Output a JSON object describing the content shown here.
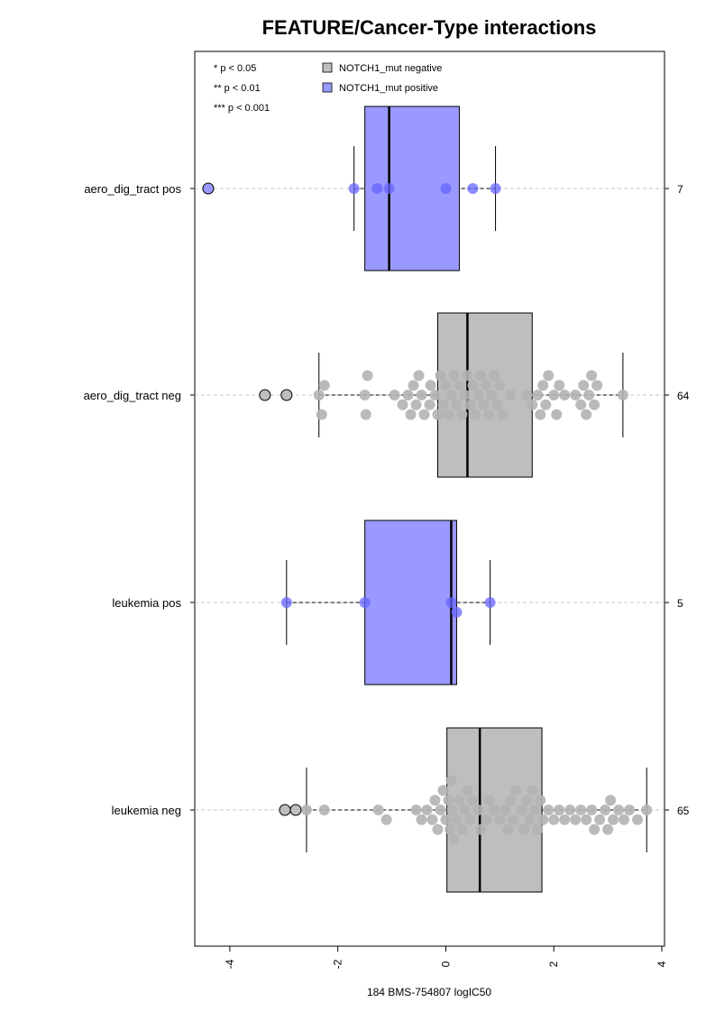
{
  "chart_data": {
    "type": "box",
    "orientation": "horizontal",
    "title": "FEATURE/Cancer-Type interactions",
    "xlabel": "184 BMS-754807 logIC50",
    "xlim": [
      -4.65,
      4.05
    ],
    "x_ticks": [
      -4,
      -2,
      0,
      2,
      4
    ],
    "x_tick_labels": [
      "-4",
      "-2",
      "0",
      "2",
      "4"
    ],
    "colors": {
      "negative": "#bebebe",
      "positive": "#9999ff",
      "neg_point": "#b3b3b3",
      "pos_point": "#6666ff",
      "outline": "#000000"
    },
    "legend_entries": [
      {
        "label": "NOTCH1_mut negative",
        "group": "negative"
      },
      {
        "label": "NOTCH1_mut positive",
        "group": "positive"
      }
    ],
    "significance_notes": [
      "* p < 0.05",
      "** p < 0.01",
      "*** p < 0.001"
    ],
    "groups": [
      {
        "label": "aero_dig_tract pos",
        "n": "7",
        "group": "positive",
        "box": {
          "q1": -1.5,
          "median": -1.05,
          "q3": 0.25,
          "whisker_low": -1.7,
          "whisker_high": 0.92
        },
        "outliers": [
          -4.4
        ],
        "points": [
          -1.7,
          -1.27,
          -1.05,
          0.0,
          0.5,
          0.92
        ]
      },
      {
        "label": "aero_dig_tract neg",
        "n": "64",
        "group": "negative",
        "box": {
          "q1": -0.15,
          "median": 0.4,
          "q3": 1.6,
          "whisker_low": -2.35,
          "whisker_high": 3.28
        },
        "outliers": [
          -3.35,
          -2.95
        ],
        "points": [
          -2.35,
          -2.3,
          -2.25,
          -1.5,
          -1.48,
          -1.45,
          -0.95,
          -0.8,
          -0.7,
          -0.65,
          -0.6,
          -0.55,
          -0.5,
          -0.45,
          -0.4,
          -0.3,
          -0.28,
          -0.2,
          -0.15,
          -0.1,
          -0.05,
          0.0,
          0.05,
          0.1,
          0.15,
          0.2,
          0.25,
          0.3,
          0.35,
          0.4,
          0.45,
          0.5,
          0.55,
          0.6,
          0.65,
          0.7,
          0.75,
          0.8,
          0.85,
          0.9,
          0.95,
          1.0,
          1.05,
          1.2,
          1.5,
          1.6,
          1.7,
          1.75,
          1.8,
          1.85,
          1.9,
          2.0,
          2.05,
          2.1,
          2.2,
          2.4,
          2.5,
          2.55,
          2.6,
          2.65,
          2.7,
          2.75,
          2.8,
          3.28
        ]
      },
      {
        "label": "leukemia pos",
        "n": "5",
        "group": "positive",
        "box": {
          "q1": -1.5,
          "median": 0.1,
          "q3": 0.2,
          "whisker_low": -2.95,
          "whisker_high": 0.82
        },
        "outliers": [],
        "points": [
          -2.95,
          -1.5,
          0.1,
          0.2,
          0.82
        ]
      },
      {
        "label": "leukemia neg",
        "n": "65",
        "group": "negative",
        "box": {
          "q1": 0.02,
          "median": 0.63,
          "q3": 1.78,
          "whisker_low": -2.58,
          "whisker_high": 3.72
        },
        "outliers": [
          -2.98,
          -2.78
        ],
        "points": [
          -2.58,
          -2.25,
          -1.25,
          -1.1,
          -0.55,
          -0.45,
          -0.35,
          -0.25,
          -0.2,
          -0.15,
          -0.1,
          -0.05,
          0.0,
          0.05,
          0.08,
          0.1,
          0.12,
          0.15,
          0.2,
          0.25,
          0.3,
          0.35,
          0.4,
          0.45,
          0.5,
          0.6,
          0.65,
          0.75,
          0.8,
          0.9,
          1.0,
          1.1,
          1.15,
          1.2,
          1.25,
          1.3,
          1.4,
          1.45,
          1.5,
          1.55,
          1.6,
          1.65,
          1.7,
          1.75,
          1.8,
          1.9,
          2.0,
          2.1,
          2.2,
          2.3,
          2.4,
          2.5,
          2.6,
          2.7,
          2.75,
          2.85,
          2.95,
          3.0,
          3.05,
          3.1,
          3.2,
          3.3,
          3.4,
          3.55,
          3.72
        ]
      }
    ]
  }
}
